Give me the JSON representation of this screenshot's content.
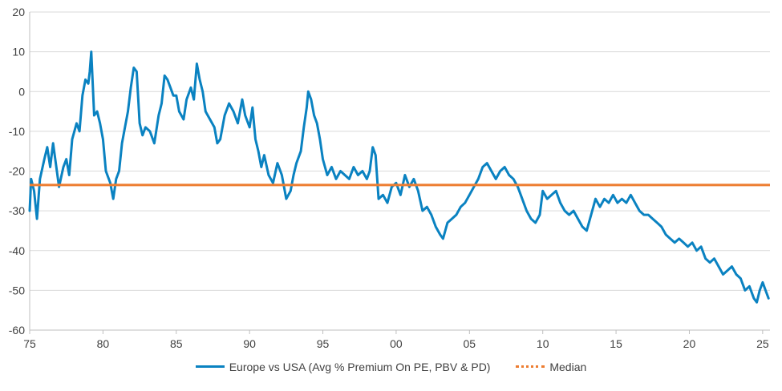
{
  "chart_data": {
    "type": "line",
    "title": "",
    "xlabel": "",
    "ylabel": "",
    "xlim": [
      1975,
      2025.5
    ],
    "ylim": [
      -60,
      20
    ],
    "yticks": [
      20,
      10,
      0,
      -10,
      -20,
      -30,
      -40,
      -50,
      -60
    ],
    "ytick_labels": [
      "20",
      "10",
      "0",
      "-10",
      "-20",
      "-30",
      "-40",
      "-50",
      "-60"
    ],
    "xticks": [
      1975,
      1980,
      1985,
      1990,
      1995,
      2000,
      2005,
      2010,
      2015,
      2020,
      2025
    ],
    "xtick_labels": [
      "75",
      "80",
      "85",
      "90",
      "95",
      "00",
      "05",
      "10",
      "15",
      "20",
      "25"
    ],
    "grid": "horizontal",
    "legend_position": "bottom",
    "series": [
      {
        "name": "Europe vs USA (Avg % Premium On PE, PBV & PD)",
        "color": "#0a82c1",
        "points": [
          [
            1975.0,
            -30
          ],
          [
            1975.1,
            -22
          ],
          [
            1975.3,
            -25
          ],
          [
            1975.5,
            -32
          ],
          [
            1975.7,
            -22
          ],
          [
            1976.0,
            -17
          ],
          [
            1976.2,
            -14
          ],
          [
            1976.4,
            -19
          ],
          [
            1976.6,
            -13
          ],
          [
            1977.0,
            -24
          ],
          [
            1977.3,
            -19
          ],
          [
            1977.5,
            -17
          ],
          [
            1977.7,
            -21
          ],
          [
            1977.9,
            -12
          ],
          [
            1978.2,
            -8
          ],
          [
            1978.4,
            -10
          ],
          [
            1978.6,
            -1
          ],
          [
            1978.8,
            3
          ],
          [
            1979.0,
            2
          ],
          [
            1979.1,
            5
          ],
          [
            1979.2,
            10
          ],
          [
            1979.4,
            -6
          ],
          [
            1979.6,
            -5
          ],
          [
            1979.8,
            -8
          ],
          [
            1980.0,
            -12
          ],
          [
            1980.2,
            -20
          ],
          [
            1980.5,
            -23
          ],
          [
            1980.7,
            -27
          ],
          [
            1980.9,
            -22
          ],
          [
            1981.1,
            -20
          ],
          [
            1981.3,
            -13
          ],
          [
            1981.5,
            -9
          ],
          [
            1981.7,
            -5
          ],
          [
            1981.9,
            1
          ],
          [
            1982.1,
            6
          ],
          [
            1982.3,
            5
          ],
          [
            1982.5,
            -8
          ],
          [
            1982.7,
            -11
          ],
          [
            1982.9,
            -9
          ],
          [
            1983.2,
            -10
          ],
          [
            1983.5,
            -13
          ],
          [
            1983.8,
            -6
          ],
          [
            1984.0,
            -3
          ],
          [
            1984.2,
            4
          ],
          [
            1984.4,
            3
          ],
          [
            1984.6,
            1
          ],
          [
            1984.8,
            -1
          ],
          [
            1985.0,
            -1
          ],
          [
            1985.2,
            -5
          ],
          [
            1985.5,
            -7
          ],
          [
            1985.7,
            -2
          ],
          [
            1986.0,
            1
          ],
          [
            1986.2,
            -2
          ],
          [
            1986.4,
            7
          ],
          [
            1986.6,
            3
          ],
          [
            1986.8,
            0
          ],
          [
            1987.0,
            -5
          ],
          [
            1987.3,
            -7
          ],
          [
            1987.6,
            -9
          ],
          [
            1987.8,
            -13
          ],
          [
            1988.0,
            -12
          ],
          [
            1988.3,
            -6
          ],
          [
            1988.6,
            -3
          ],
          [
            1988.9,
            -5
          ],
          [
            1989.2,
            -8
          ],
          [
            1989.5,
            -2
          ],
          [
            1989.7,
            -6
          ],
          [
            1990.0,
            -9
          ],
          [
            1990.2,
            -4
          ],
          [
            1990.4,
            -12
          ],
          [
            1990.6,
            -15
          ],
          [
            1990.8,
            -19
          ],
          [
            1991.0,
            -16
          ],
          [
            1991.3,
            -21
          ],
          [
            1991.6,
            -23
          ],
          [
            1991.9,
            -18
          ],
          [
            1992.2,
            -21
          ],
          [
            1992.5,
            -27
          ],
          [
            1992.8,
            -25
          ],
          [
            1993.0,
            -21
          ],
          [
            1993.2,
            -18
          ],
          [
            1993.5,
            -15
          ],
          [
            1993.7,
            -9
          ],
          [
            1993.9,
            -4
          ],
          [
            1994.0,
            0
          ],
          [
            1994.2,
            -2
          ],
          [
            1994.4,
            -6
          ],
          [
            1994.6,
            -8
          ],
          [
            1994.8,
            -12
          ],
          [
            1995.0,
            -17
          ],
          [
            1995.3,
            -21
          ],
          [
            1995.6,
            -19
          ],
          [
            1995.9,
            -22
          ],
          [
            1996.2,
            -20
          ],
          [
            1996.5,
            -21
          ],
          [
            1996.8,
            -22
          ],
          [
            1997.1,
            -19
          ],
          [
            1997.4,
            -21
          ],
          [
            1997.7,
            -20
          ],
          [
            1998.0,
            -22
          ],
          [
            1998.2,
            -20
          ],
          [
            1998.4,
            -14
          ],
          [
            1998.6,
            -16
          ],
          [
            1998.8,
            -27
          ],
          [
            1999.1,
            -26
          ],
          [
            1999.4,
            -28
          ],
          [
            1999.7,
            -24
          ],
          [
            2000.0,
            -23
          ],
          [
            2000.3,
            -26
          ],
          [
            2000.6,
            -21
          ],
          [
            2000.9,
            -24
          ],
          [
            2001.2,
            -22
          ],
          [
            2001.5,
            -25
          ],
          [
            2001.8,
            -30
          ],
          [
            2002.1,
            -29
          ],
          [
            2002.4,
            -31
          ],
          [
            2002.7,
            -34
          ],
          [
            2003.0,
            -36
          ],
          [
            2003.2,
            -37
          ],
          [
            2003.5,
            -33
          ],
          [
            2003.8,
            -32
          ],
          [
            2004.1,
            -31
          ],
          [
            2004.4,
            -29
          ],
          [
            2004.7,
            -28
          ],
          [
            2005.0,
            -26
          ],
          [
            2005.3,
            -24
          ],
          [
            2005.6,
            -22
          ],
          [
            2005.9,
            -19
          ],
          [
            2006.2,
            -18
          ],
          [
            2006.5,
            -20
          ],
          [
            2006.8,
            -22
          ],
          [
            2007.1,
            -20
          ],
          [
            2007.4,
            -19
          ],
          [
            2007.7,
            -21
          ],
          [
            2008.0,
            -22
          ],
          [
            2008.3,
            -24
          ],
          [
            2008.6,
            -27
          ],
          [
            2008.9,
            -30
          ],
          [
            2009.2,
            -32
          ],
          [
            2009.5,
            -33
          ],
          [
            2009.8,
            -31
          ],
          [
            2010.0,
            -25
          ],
          [
            2010.3,
            -27
          ],
          [
            2010.6,
            -26
          ],
          [
            2010.9,
            -25
          ],
          [
            2011.2,
            -28
          ],
          [
            2011.5,
            -30
          ],
          [
            2011.8,
            -31
          ],
          [
            2012.1,
            -30
          ],
          [
            2012.4,
            -32
          ],
          [
            2012.7,
            -34
          ],
          [
            2013.0,
            -35
          ],
          [
            2013.3,
            -31
          ],
          [
            2013.6,
            -27
          ],
          [
            2013.9,
            -29
          ],
          [
            2014.2,
            -27
          ],
          [
            2014.5,
            -28
          ],
          [
            2014.8,
            -26
          ],
          [
            2015.1,
            -28
          ],
          [
            2015.4,
            -27
          ],
          [
            2015.7,
            -28
          ],
          [
            2016.0,
            -26
          ],
          [
            2016.3,
            -28
          ],
          [
            2016.6,
            -30
          ],
          [
            2016.9,
            -31
          ],
          [
            2017.2,
            -31
          ],
          [
            2017.5,
            -32
          ],
          [
            2017.8,
            -33
          ],
          [
            2018.1,
            -34
          ],
          [
            2018.4,
            -36
          ],
          [
            2018.7,
            -37
          ],
          [
            2019.0,
            -38
          ],
          [
            2019.3,
            -37
          ],
          [
            2019.6,
            -38
          ],
          [
            2019.9,
            -39
          ],
          [
            2020.2,
            -38
          ],
          [
            2020.5,
            -40
          ],
          [
            2020.8,
            -39
          ],
          [
            2021.1,
            -42
          ],
          [
            2021.4,
            -43
          ],
          [
            2021.7,
            -42
          ],
          [
            2022.0,
            -44
          ],
          [
            2022.3,
            -46
          ],
          [
            2022.6,
            -45
          ],
          [
            2022.9,
            -44
          ],
          [
            2023.2,
            -46
          ],
          [
            2023.5,
            -47
          ],
          [
            2023.8,
            -50
          ],
          [
            2024.1,
            -49
          ],
          [
            2024.4,
            -52
          ],
          [
            2024.6,
            -53
          ],
          [
            2024.8,
            -50
          ],
          [
            2025.0,
            -48
          ],
          [
            2025.2,
            -50
          ],
          [
            2025.4,
            -52
          ]
        ]
      },
      {
        "name": "Median",
        "color": "#ed7d31",
        "constant": -23.5
      }
    ]
  }
}
